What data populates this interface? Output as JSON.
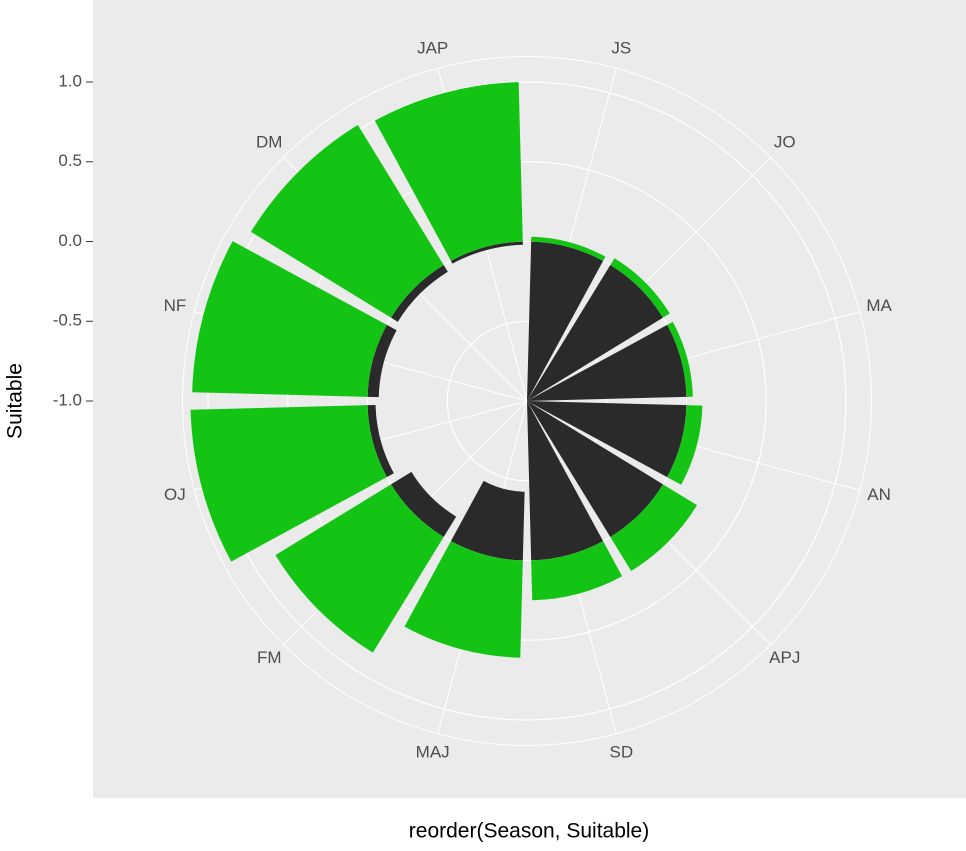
{
  "chart_data": {
    "type": "polar-bar",
    "x_label": "reorder(Season, Suitable)",
    "y_label": "Suitable",
    "categories": [
      "JS",
      "JO",
      "MA",
      "AN",
      "APJ",
      "SD",
      "MAJ",
      "FM",
      "OJ",
      "NF",
      "DM",
      "JAP"
    ],
    "series": [
      {
        "color": "#2b2a2b",
        "values": [
          -1,
          -1,
          -1,
          -1,
          -1,
          -1,
          -0.43,
          -0.15,
          -0.05,
          -0.07,
          -0.05,
          -0.02
        ]
      },
      {
        "color": "#14c414",
        "values": [
          0.03,
          0.05,
          0.04,
          0.1,
          0.25,
          0.25,
          0.61,
          0.85,
          1.11,
          1.1,
          1.03,
          1.0
        ]
      }
    ],
    "ylim": [
      -1,
      1.16
    ],
    "yticks": [
      {
        "value": 1,
        "label": "1.0"
      },
      {
        "value": 0.5,
        "label": "0.5"
      },
      {
        "value": 0,
        "label": "0.0"
      },
      {
        "value": -0.5,
        "label": "-0.5"
      },
      {
        "value": -1,
        "label": "-1.0"
      }
    ],
    "grid": true
  }
}
